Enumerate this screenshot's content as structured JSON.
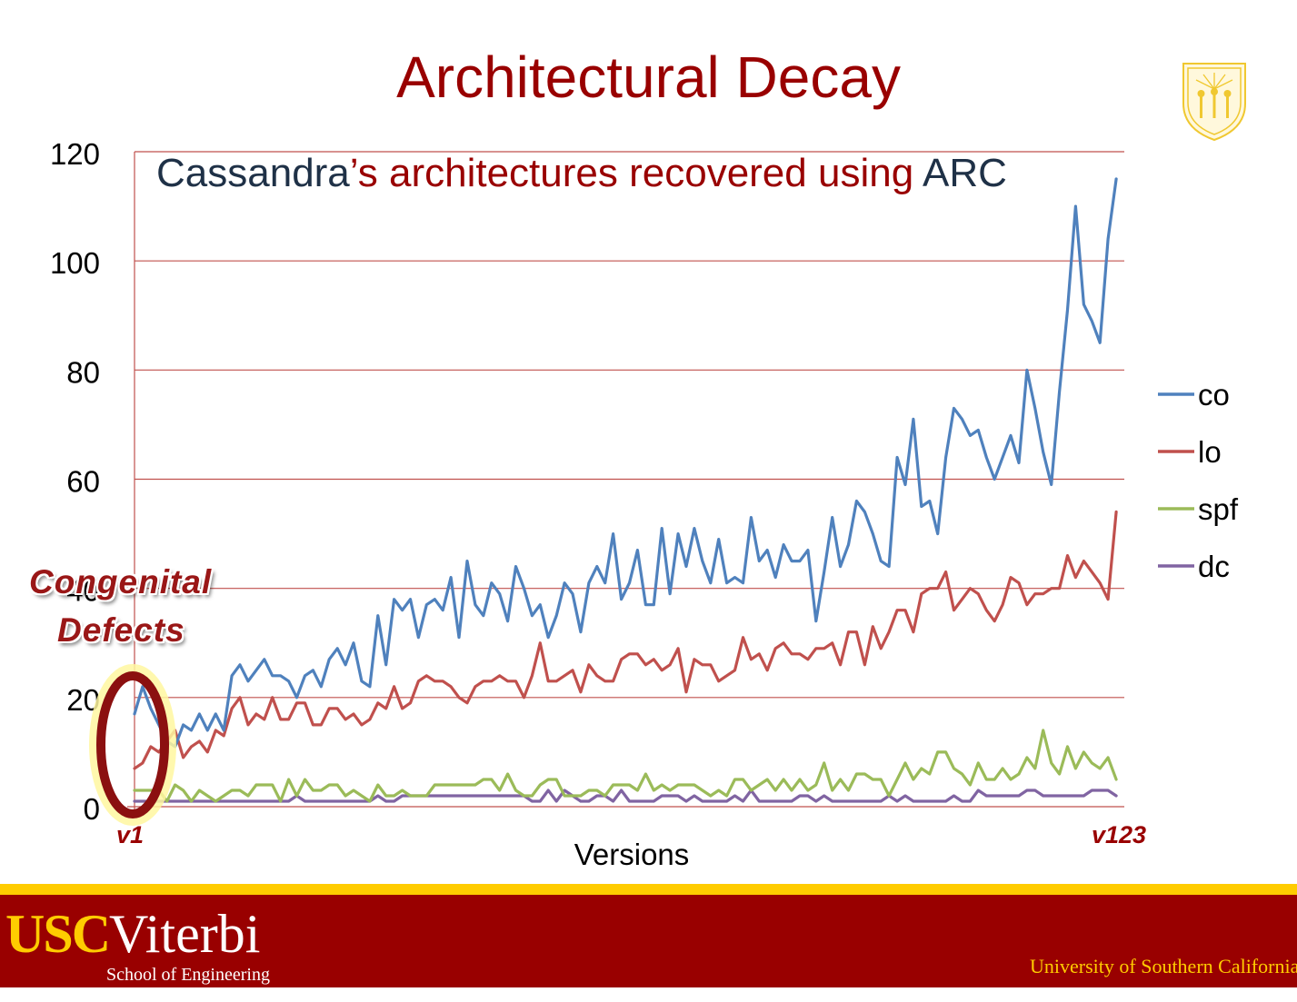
{
  "slide": {
    "title": "Architectural Decay",
    "callout_line1": "Congenital",
    "callout_line2": "Defects",
    "first_version": "v1",
    "last_version": "v123"
  },
  "footer": {
    "logo_usc": "USC",
    "logo_viterbi": "Viterbi",
    "school": "School of Engineering",
    "university": "University of Southern California"
  },
  "colors": {
    "brand_cardinal": "#990000",
    "brand_gold": "#ffcc00",
    "gridline": "#c0504d",
    "ellipse": "#8b1010"
  },
  "chart_data": {
    "type": "line",
    "title_part1": "Cassandra",
    "title_part2": "’s architectures recovered using ",
    "title_part3": "ARC",
    "xlabel": "Versions",
    "ylabel": "",
    "ylim": [
      0,
      120
    ],
    "yticks": [
      0,
      20,
      40,
      60,
      80,
      100,
      120
    ],
    "xlim": [
      1,
      123
    ],
    "grid": true,
    "legend_position": "right",
    "series": [
      {
        "name": "co",
        "color": "#4f81bd",
        "values": [
          17,
          22,
          18,
          15,
          12,
          11,
          15,
          14,
          17,
          14,
          17,
          14,
          24,
          26,
          23,
          25,
          27,
          24,
          24,
          23,
          20,
          24,
          25,
          22,
          27,
          29,
          26,
          30,
          23,
          22,
          35,
          26,
          38,
          36,
          38,
          31,
          37,
          38,
          36,
          42,
          31,
          45,
          37,
          35,
          41,
          39,
          34,
          44,
          40,
          35,
          37,
          31,
          35,
          41,
          39,
          32,
          41,
          44,
          41,
          50,
          38,
          41,
          47,
          37,
          37,
          51,
          39,
          50,
          44,
          51,
          45,
          41,
          49,
          41,
          42,
          41,
          53,
          45,
          47,
          42,
          48,
          45,
          45,
          47,
          34,
          43,
          53,
          44,
          48,
          56,
          54,
          50,
          45,
          44,
          64,
          59,
          71,
          55,
          56,
          50,
          64,
          73,
          71,
          68,
          69,
          64,
          60,
          64,
          68,
          63,
          80,
          73,
          65,
          59,
          76,
          91,
          110,
          92,
          89,
          85,
          104,
          115
        ]
      },
      {
        "name": "lo",
        "color": "#c0504d",
        "values": [
          7,
          8,
          11,
          10,
          12,
          14,
          9,
          11,
          12,
          10,
          14,
          13,
          18,
          20,
          15,
          17,
          16,
          20,
          16,
          16,
          19,
          19,
          15,
          15,
          18,
          18,
          16,
          17,
          15,
          16,
          19,
          18,
          22,
          18,
          19,
          23,
          24,
          23,
          23,
          22,
          20,
          19,
          22,
          23,
          23,
          24,
          23,
          23,
          20,
          24,
          30,
          23,
          23,
          24,
          25,
          21,
          26,
          24,
          23,
          23,
          27,
          28,
          28,
          26,
          27,
          25,
          26,
          29,
          21,
          27,
          26,
          26,
          23,
          24,
          25,
          31,
          27,
          28,
          25,
          29,
          30,
          28,
          28,
          27,
          29,
          29,
          30,
          26,
          32,
          32,
          26,
          33,
          29,
          32,
          36,
          36,
          32,
          39,
          40,
          40,
          43,
          36,
          38,
          40,
          39,
          36,
          34,
          37,
          42,
          41,
          37,
          39,
          39,
          40,
          40,
          46,
          42,
          45,
          43,
          41,
          38,
          54
        ]
      },
      {
        "name": "spf",
        "color": "#9bbb59",
        "values": [
          3,
          3,
          3,
          3,
          1,
          4,
          3,
          1,
          3,
          2,
          1,
          2,
          3,
          3,
          2,
          4,
          4,
          4,
          1,
          5,
          2,
          5,
          3,
          3,
          4,
          4,
          2,
          3,
          2,
          1,
          4,
          2,
          2,
          3,
          2,
          2,
          2,
          4,
          4,
          4,
          4,
          4,
          4,
          5,
          5,
          3,
          6,
          3,
          2,
          2,
          4,
          5,
          5,
          2,
          2,
          2,
          3,
          3,
          2,
          4,
          4,
          4,
          3,
          6,
          3,
          4,
          3,
          4,
          4,
          4,
          3,
          2,
          3,
          2,
          5,
          5,
          3,
          4,
          5,
          3,
          5,
          3,
          5,
          3,
          4,
          8,
          3,
          5,
          3,
          6,
          6,
          5,
          5,
          2,
          5,
          8,
          5,
          7,
          6,
          10,
          10,
          7,
          6,
          4,
          8,
          5,
          5,
          7,
          5,
          6,
          9,
          7,
          14,
          8,
          6,
          11,
          7,
          10,
          8,
          7,
          9,
          5
        ]
      },
      {
        "name": "dc",
        "color": "#8064a2",
        "values": [
          1,
          1,
          1,
          1,
          1,
          1,
          1,
          1,
          1,
          1,
          1,
          1,
          1,
          1,
          1,
          1,
          1,
          1,
          1,
          1,
          2,
          1,
          1,
          1,
          1,
          1,
          1,
          1,
          1,
          1,
          2,
          1,
          1,
          2,
          2,
          2,
          2,
          2,
          2,
          2,
          2,
          2,
          2,
          2,
          2,
          2,
          2,
          2,
          2,
          1,
          1,
          3,
          1,
          3,
          2,
          1,
          1,
          2,
          2,
          1,
          3,
          1,
          1,
          1,
          1,
          2,
          2,
          2,
          1,
          2,
          1,
          1,
          1,
          1,
          2,
          1,
          3,
          1,
          1,
          1,
          1,
          1,
          2,
          2,
          1,
          2,
          1,
          1,
          1,
          1,
          1,
          1,
          1,
          2,
          1,
          2,
          1,
          1,
          1,
          1,
          1,
          2,
          1,
          1,
          3,
          2,
          2,
          2,
          2,
          2,
          3,
          3,
          2,
          2,
          2,
          2,
          2,
          2,
          3,
          3,
          3,
          2
        ]
      }
    ]
  }
}
